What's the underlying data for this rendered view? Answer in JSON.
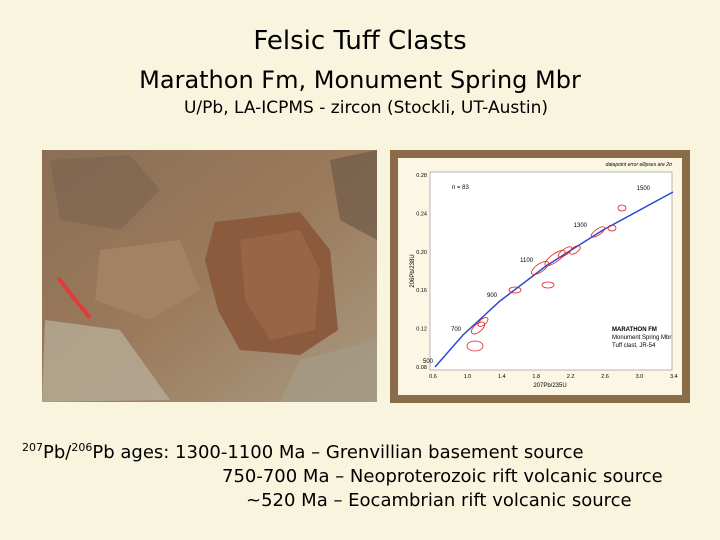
{
  "header": {
    "title": "Felsic Tuff Clasts",
    "subtitle": "Marathon Fm, Monument Spring Mbr",
    "method": "U/Pb, LA-ICPMS - zircon (Stockli, UT-Austin)"
  },
  "figure": {
    "note": "datapoint error ellipses are 2σ",
    "n": "n = 83",
    "ages": [
      "500",
      "700",
      "900",
      "1100",
      "1300",
      "1500"
    ],
    "yticks": [
      "0.28",
      "0.24",
      "0.20",
      "0.16",
      "0.12",
      "0.08"
    ],
    "xticks": [
      "0.6",
      "1.0",
      "1.4",
      "1.8",
      "2.2",
      "2.6",
      "3.0",
      "3.4"
    ],
    "ylabel": "206Pb/238U",
    "xlabel": "207Pb/235U",
    "legend": [
      "MARATHON FM",
      "Monument Spring Mbr",
      "Tuff clast, JR-54"
    ]
  },
  "caption": {
    "line1": {
      "sup1": "207",
      "text1": "Pb/",
      "sup2": "206",
      "text2": "Pb ages: 1300-1100 Ma – Grenvillian basement source"
    },
    "line2": "750-700 Ma – Neoproterozoic rift volcanic source",
    "line3": "~520 Ma – Eocambrian rift volcanic source"
  }
}
